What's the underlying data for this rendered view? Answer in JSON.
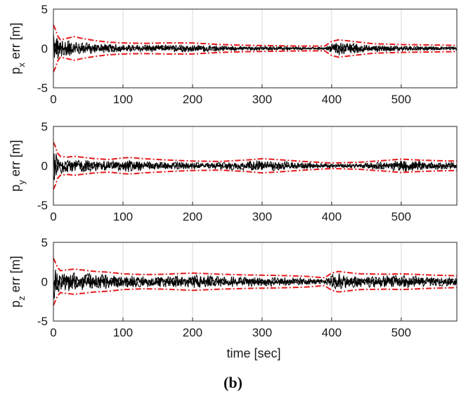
{
  "caption": "(b)",
  "chart_data": [
    {
      "type": "line",
      "ylabel_main": "p",
      "ylabel_sub": "x",
      "ylabel_rest": " err [m]",
      "xlim": [
        0,
        580
      ],
      "ylim": [
        -5,
        5
      ],
      "xticks": [
        0,
        100,
        200,
        300,
        400,
        500
      ],
      "yticks": [
        5,
        0,
        -5
      ],
      "grid": true,
      "colors": {
        "error": "#000000",
        "bound": "#e8191c"
      },
      "series": [
        {
          "role": "error",
          "x": [
            0,
            5,
            10,
            20,
            30,
            40,
            60,
            80,
            100,
            130,
            160,
            200,
            240,
            280,
            320,
            360,
            390,
            400,
            410,
            420,
            440,
            460,
            500,
            540,
            580
          ],
          "y": [
            2.2,
            1.4,
            1.1,
            1.0,
            0.9,
            0.8,
            0.7,
            0.6,
            0.5,
            0.45,
            0.45,
            0.5,
            0.35,
            0.25,
            0.25,
            0.2,
            0.15,
            0.6,
            0.9,
            0.8,
            0.6,
            0.45,
            0.3,
            0.25,
            0.2
          ]
        },
        {
          "role": "bound",
          "x": [
            0,
            3,
            6,
            10,
            20,
            30,
            40,
            60,
            80,
            100,
            130,
            160,
            200,
            240,
            280,
            320,
            360,
            390,
            400,
            410,
            420,
            440,
            460,
            500,
            540,
            580
          ],
          "y": [
            3.0,
            2.4,
            1.6,
            1.1,
            1.3,
            1.5,
            1.3,
            1.0,
            0.8,
            0.7,
            0.65,
            0.7,
            0.7,
            0.5,
            0.4,
            0.35,
            0.3,
            0.3,
            0.9,
            1.1,
            1.0,
            0.8,
            0.6,
            0.5,
            0.45,
            0.4
          ]
        }
      ]
    },
    {
      "type": "line",
      "ylabel_main": "p",
      "ylabel_sub": "y",
      "ylabel_rest": " err [m]",
      "xlim": [
        0,
        580
      ],
      "ylim": [
        -5,
        5
      ],
      "xticks": [
        0,
        100,
        200,
        300,
        400,
        500
      ],
      "yticks": [
        5,
        0,
        -5
      ],
      "grid": true,
      "colors": {
        "error": "#000000",
        "bound": "#e8191c"
      },
      "series": [
        {
          "role": "error",
          "x": [
            0,
            5,
            10,
            20,
            30,
            40,
            60,
            80,
            100,
            110,
            130,
            160,
            200,
            240,
            280,
            300,
            320,
            360,
            400,
            440,
            480,
            500,
            520,
            550,
            580
          ],
          "y": [
            2.2,
            1.4,
            1.1,
            1.0,
            0.9,
            0.8,
            0.7,
            0.6,
            0.75,
            0.8,
            0.6,
            0.5,
            0.45,
            0.45,
            0.6,
            0.75,
            0.6,
            0.4,
            0.25,
            0.3,
            0.55,
            0.8,
            0.6,
            0.5,
            0.45
          ]
        },
        {
          "role": "bound",
          "x": [
            0,
            3,
            6,
            10,
            20,
            30,
            40,
            60,
            80,
            100,
            110,
            130,
            160,
            200,
            240,
            280,
            300,
            320,
            360,
            400,
            440,
            480,
            500,
            520,
            550,
            580
          ],
          "y": [
            3.0,
            2.4,
            1.6,
            1.2,
            1.1,
            1.2,
            1.1,
            0.9,
            0.8,
            1.0,
            1.05,
            0.9,
            0.75,
            0.6,
            0.55,
            0.75,
            0.9,
            0.8,
            0.55,
            0.35,
            0.45,
            0.7,
            0.85,
            0.75,
            0.65,
            0.6
          ]
        }
      ]
    },
    {
      "type": "line",
      "ylabel_main": "p",
      "ylabel_sub": "z",
      "ylabel_rest": " err [m]",
      "xlabel": "time [sec]",
      "xlim": [
        0,
        580
      ],
      "ylim": [
        -5,
        5
      ],
      "xticks": [
        0,
        100,
        200,
        300,
        400,
        500
      ],
      "yticks": [
        5,
        0,
        -5
      ],
      "grid": true,
      "colors": {
        "error": "#000000",
        "bound": "#e8191c"
      },
      "series": [
        {
          "role": "error",
          "x": [
            0,
            5,
            10,
            20,
            30,
            40,
            60,
            80,
            100,
            130,
            160,
            200,
            240,
            280,
            320,
            360,
            390,
            400,
            410,
            420,
            440,
            480,
            500,
            540,
            580
          ],
          "y": [
            2.4,
            1.6,
            1.3,
            1.2,
            1.2,
            1.1,
            1.0,
            0.9,
            0.8,
            0.7,
            0.75,
            0.9,
            0.75,
            0.6,
            0.6,
            0.5,
            0.3,
            0.9,
            1.1,
            0.9,
            0.7,
            0.75,
            0.8,
            0.6,
            0.5
          ]
        },
        {
          "role": "bound",
          "x": [
            0,
            3,
            6,
            10,
            20,
            30,
            40,
            60,
            80,
            100,
            130,
            160,
            200,
            240,
            280,
            320,
            360,
            390,
            400,
            410,
            420,
            440,
            480,
            500,
            540,
            580
          ],
          "y": [
            3.0,
            2.4,
            1.8,
            1.4,
            1.5,
            1.6,
            1.5,
            1.3,
            1.2,
            1.0,
            0.9,
            0.95,
            1.1,
            0.95,
            0.85,
            0.8,
            0.7,
            0.5,
            1.1,
            1.3,
            1.2,
            1.0,
            0.95,
            1.0,
            0.85,
            0.75
          ]
        }
      ]
    }
  ]
}
